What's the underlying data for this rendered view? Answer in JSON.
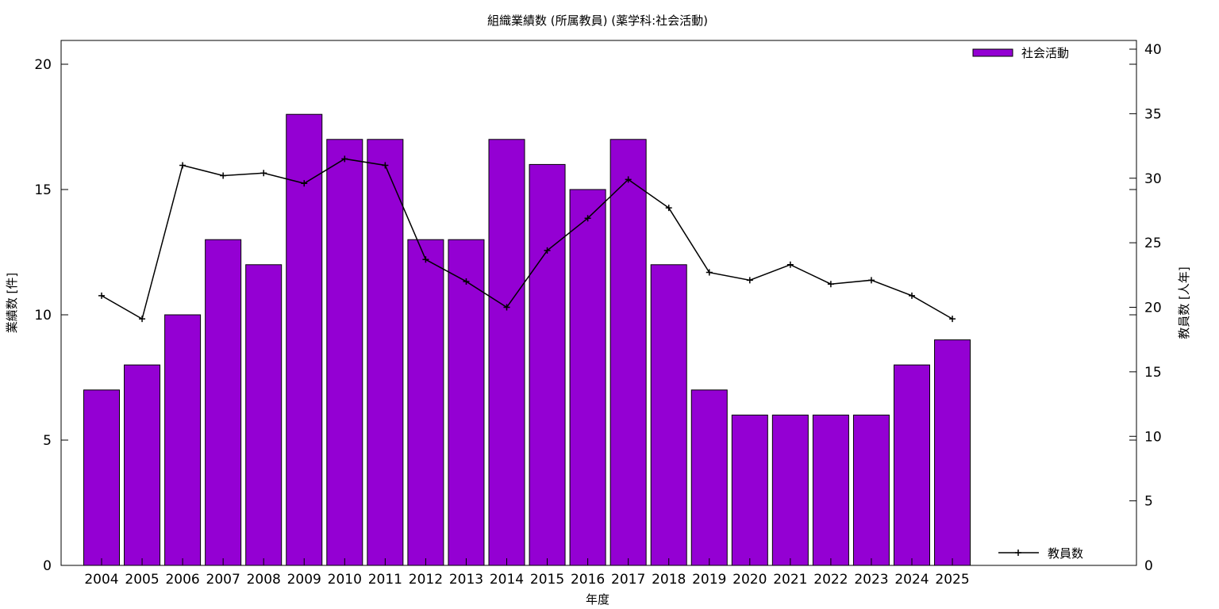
{
  "chart_data": {
    "type": "bar",
    "title": "組織業績数 (所属教員) (薬学科:社会活動)",
    "xlabel": "年度",
    "ylabel": "業績数 [件]",
    "y2label": "教員数 [人年]",
    "categories": [
      "2004",
      "2005",
      "2006",
      "2007",
      "2008",
      "2009",
      "2010",
      "2011",
      "2012",
      "2013",
      "2014",
      "2015",
      "2016",
      "2017",
      "2018",
      "2019",
      "2020",
      "2021",
      "2022",
      "2023",
      "2024",
      "2025"
    ],
    "series": [
      {
        "name": "社会活動",
        "kind": "bar",
        "axis": "left",
        "color": "#9400d3",
        "values": [
          7,
          8,
          10,
          13,
          12,
          18,
          17,
          17,
          13,
          13,
          17,
          16,
          15,
          17,
          12,
          7,
          6,
          6,
          6,
          6,
          8,
          9
        ]
      },
      {
        "name": "教員数",
        "kind": "line",
        "axis": "right",
        "color": "#000000",
        "values": [
          20.9,
          19.1,
          31.0,
          30.2,
          30.4,
          29.6,
          31.5,
          31.0,
          23.7,
          22.0,
          20.0,
          24.4,
          26.9,
          29.9,
          27.7,
          22.7,
          22.1,
          23.3,
          21.8,
          22.1,
          20.9,
          19.1
        ]
      }
    ],
    "ylim": [
      0,
      20
    ],
    "y2lim": [
      0,
      40
    ],
    "yticks": [
      0,
      5,
      10,
      15,
      20
    ],
    "y2ticks": [
      0,
      5,
      10,
      15,
      20,
      25,
      30,
      35,
      40
    ],
    "legend": {
      "bar_position": "top-right",
      "line_position": "bottom-right"
    },
    "grid": false
  }
}
